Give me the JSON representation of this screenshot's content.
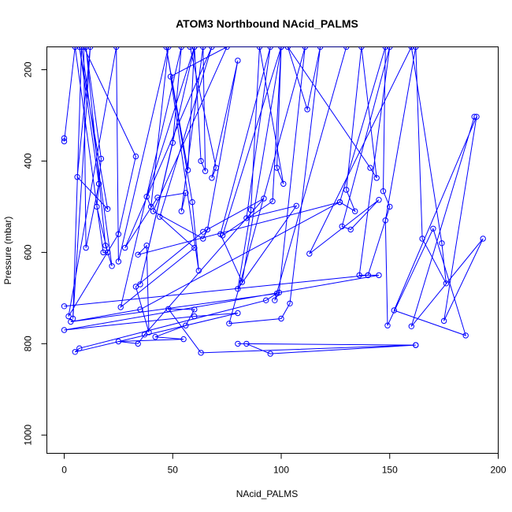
{
  "chart_data": {
    "type": "line",
    "title": "ATOM3 Northbound NAcid_PALMS",
    "xlabel": "NAcid_PALMS",
    "ylabel": "Pressure (mbar)",
    "xlim": [
      -8,
      200
    ],
    "ylim": [
      1040,
      150
    ],
    "y_reversed": true,
    "grid": false,
    "xticks": [
      0,
      50,
      100,
      150,
      200
    ],
    "yticks": [
      200,
      400,
      600,
      800,
      1000
    ],
    "series": [
      {
        "color": "#0000ff",
        "marker": "open-circle",
        "points": [
          [
            0,
            350
          ],
          [
            0,
            357
          ],
          [
            5,
            150
          ],
          [
            18,
            600
          ],
          [
            20,
            600
          ],
          [
            15,
            500
          ],
          [
            17,
            395
          ],
          [
            10,
            150
          ],
          [
            19,
            585
          ],
          [
            22,
            630
          ],
          [
            8,
            150
          ],
          [
            4,
            745
          ],
          [
            12,
            150
          ],
          [
            6,
            435
          ],
          [
            20,
            505
          ],
          [
            7,
            150
          ],
          [
            16,
            450
          ],
          [
            10,
            590
          ],
          [
            9,
            150
          ],
          [
            33,
            390
          ],
          [
            25,
            560
          ],
          [
            2,
            740
          ],
          [
            24,
            150
          ],
          [
            25,
            620
          ],
          [
            48,
            150
          ],
          [
            40,
            500
          ],
          [
            38,
            478
          ],
          [
            60,
            150
          ],
          [
            35,
            670
          ],
          [
            50,
            360
          ],
          [
            54,
            150
          ],
          [
            26,
            720
          ],
          [
            60,
            590
          ],
          [
            44,
            522
          ],
          [
            68,
            150
          ],
          [
            28,
            590
          ],
          [
            43,
            480
          ],
          [
            56,
            470
          ],
          [
            54,
            510
          ],
          [
            64,
            150
          ],
          [
            65,
            422
          ],
          [
            63,
            400
          ],
          [
            60,
            150
          ],
          [
            57,
            420
          ],
          [
            47,
            150
          ],
          [
            59,
            490
          ],
          [
            62,
            640
          ],
          [
            49,
            215
          ],
          [
            75,
            150
          ],
          [
            41,
            510
          ],
          [
            64,
            570
          ],
          [
            66,
            550
          ],
          [
            80,
            180
          ],
          [
            68,
            437
          ],
          [
            70,
            415
          ],
          [
            58,
            150
          ],
          [
            100,
            150
          ],
          [
            98,
            415
          ],
          [
            101,
            450
          ],
          [
            90,
            150
          ],
          [
            86,
            507
          ],
          [
            80,
            680
          ],
          [
            107,
            498
          ],
          [
            84,
            525
          ],
          [
            95,
            150
          ],
          [
            72,
            560
          ],
          [
            82,
            665
          ],
          [
            100,
            150
          ],
          [
            73,
            563
          ],
          [
            96,
            488
          ],
          [
            100,
            150
          ],
          [
            130,
            150
          ],
          [
            97,
            705
          ],
          [
            99,
            688
          ],
          [
            111,
            150
          ],
          [
            76,
            756
          ],
          [
            100,
            745
          ],
          [
            104,
            712
          ],
          [
            118,
            150
          ],
          [
            112,
            287
          ],
          [
            103,
            150
          ],
          [
            141,
            415
          ],
          [
            144,
            437
          ],
          [
            137,
            150
          ],
          [
            130,
            463
          ],
          [
            134,
            510
          ],
          [
            127,
            490
          ],
          [
            148,
            150
          ],
          [
            147,
            466
          ],
          [
            150,
            500
          ],
          [
            140,
            650
          ],
          [
            136,
            650
          ],
          [
            150,
            150
          ],
          [
            128,
            543
          ],
          [
            132,
            550
          ],
          [
            145,
            485
          ],
          [
            113,
            603
          ],
          [
            160,
            150
          ],
          [
            174,
            580
          ],
          [
            176,
            668
          ],
          [
            165,
            570
          ],
          [
            162,
            150
          ],
          [
            148,
            530
          ],
          [
            149,
            760
          ],
          [
            170,
            548
          ],
          [
            185,
            782
          ],
          [
            152,
            727
          ],
          [
            190,
            303
          ],
          [
            175,
            750
          ],
          [
            193,
            570
          ],
          [
            160,
            762
          ],
          [
            189,
            303
          ]
        ]
      },
      {
        "color": "#0000ff",
        "marker": "open-circle",
        "points": [
          [
            0,
            718
          ],
          [
            140,
            650
          ],
          [
            145,
            650
          ],
          [
            0,
            770
          ],
          [
            60,
            740
          ],
          [
            80,
            733
          ],
          [
            5,
            818
          ],
          [
            7,
            810
          ],
          [
            93,
            705
          ],
          [
            98,
            690
          ],
          [
            3,
            752
          ],
          [
            35,
            725
          ],
          [
            127,
            490
          ],
          [
            34,
            605
          ],
          [
            38,
            585
          ],
          [
            39,
            775
          ],
          [
            33,
            675
          ],
          [
            64,
            555
          ],
          [
            92,
            482
          ],
          [
            37,
            780
          ],
          [
            34,
            800
          ],
          [
            25,
            795
          ],
          [
            55,
            790
          ],
          [
            42,
            785
          ],
          [
            56,
            760
          ],
          [
            60,
            725
          ],
          [
            48,
            724
          ],
          [
            63,
            820
          ],
          [
            162,
            803
          ],
          [
            95,
            822
          ],
          [
            84,
            800
          ],
          [
            162,
            803
          ],
          [
            80,
            800
          ]
        ]
      }
    ]
  }
}
